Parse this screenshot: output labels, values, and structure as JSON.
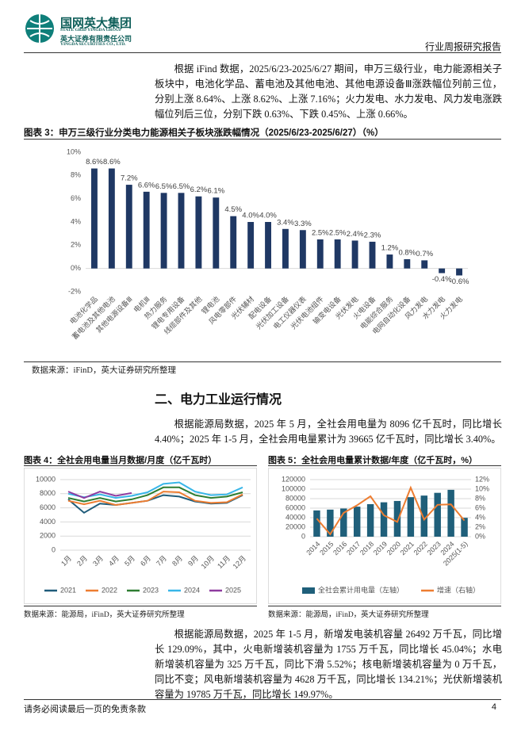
{
  "header": {
    "company": "国网英大集团",
    "company_en": "STATE GRID YINGDA GROUP",
    "sub": "英大证券有限责任公司",
    "sub_en": "YINGDA SECURITIES CO., LTD.",
    "report_type": "行业周报研究报告"
  },
  "paragraphs": [
    "根据 iFind 数据，2025/6/23-2025/6/27 期间，申万三级行业，电力能源相关子板块中，电池化学品、蓄电池及其他电池、其他电源设备Ⅲ涨跌幅位列前三位，分别上涨 8.64%、上涨 8.62%、上涨 7.16%；火力发电、水力发电、风力发电涨跌幅位列后三位，分别下跌 0.63%、下跌 0.45%、上涨 0.66%。",
    "根据能源局数据，2025 年 5 月，全社会用电量为 8096 亿千瓦时，同比增长 4.40%；2025 年 1-5 月，全社会用电量累计为 39665 亿千瓦时，同比增长 3.40%。",
    "根据能源局数据，2025 年 1-5 月，新增发电装机容量 26492 万千瓦，同比增长 129.09%，其中，火电新增装机容量为 1755 万千瓦，同比增长 45.04%；水电新增装机容量为 325 万千瓦，同比下滑 5.52%；核电新增装机容量为 0 万千瓦，同比不变；风电新增装机容量为 4628 万千瓦，同比增长 134.21%；光伏新增装机容量为 19785 万千瓦，同比增长 149.97%。"
  ],
  "section_heading": "二、电力工业运行情况",
  "footer": {
    "disclaimer": "请务必阅读最后一页的免责条款",
    "page": "4"
  },
  "chart_data": [
    {
      "type": "bar",
      "title": "图表 3：申万三级行业分类电力能源相关子板块涨跌幅情况（2025/6/23-2025/6/27）（%）",
      "source": "数据来源：iFinD，英大证券研究所整理",
      "categories": [
        "电池化学品",
        "蓄电池及其他电池",
        "其他电源设备Ⅲ",
        "电机Ⅲ",
        "热力服务",
        "锂电专用设备",
        "线缆部件及其他",
        "锂电池",
        "风电零部件",
        "光伏辅材",
        "配电设备",
        "光伏加工设备",
        "电工仪器仪表",
        "光伏电池组件",
        "输变电设备",
        "光伏发电",
        "火电设备",
        "电能综合服务",
        "电网自动化设备",
        "风力发电",
        "水力发电",
        "火力发电"
      ],
      "values": [
        8.6,
        8.6,
        7.2,
        6.6,
        6.5,
        6.5,
        6.2,
        6.1,
        4.5,
        4.0,
        4.0,
        3.4,
        3.3,
        2.5,
        2.5,
        2.4,
        2.3,
        1.2,
        0.8,
        0.7,
        -0.4,
        -0.6
      ],
      "value_labels": [
        "8.6%",
        "8.6%",
        "7.2%",
        "6.6%",
        "6.5%",
        "6.5%",
        "6.2%",
        "6.1%",
        "4.5%",
        "4.0%",
        "4.0%",
        "3.4%",
        "3.3%",
        "2.5%",
        "2.5%",
        "2.4%",
        "2.3%",
        "1.2%",
        "0.8%",
        "0.7%",
        "-0.4%",
        "-0.6%"
      ],
      "color": "#1f3864",
      "ylim": [
        -2,
        10
      ],
      "yticks": [
        {
          "value": -2,
          "label": "-2%"
        },
        {
          "value": 0,
          "label": "0%"
        },
        {
          "value": 2,
          "label": "2%"
        },
        {
          "value": 4,
          "label": "4%"
        },
        {
          "value": 6,
          "label": "6%"
        },
        {
          "value": 8,
          "label": "8%"
        },
        {
          "value": 10,
          "label": "10%"
        }
      ],
      "grid": false
    },
    {
      "type": "line",
      "title": "图表 4：全社会用电量当月数据/月度（亿千瓦时）",
      "source": "数据来源：能源局，iFinD，英大证券研究所整理",
      "categories": [
        "1月",
        "2月",
        "3月",
        "4月",
        "5月",
        "6月",
        "7月",
        "8月",
        "9月",
        "10月",
        "11月",
        "12月"
      ],
      "series": [
        {
          "name": "2021",
          "color": "#1f5c7a",
          "values": [
            7200,
            5300,
            6600,
            6400,
            6700,
            7000,
            7800,
            7600,
            6900,
            6600,
            6700,
            7800
          ]
        },
        {
          "name": "2022",
          "color": "#ed7d31",
          "values": [
            7000,
            6500,
            7000,
            6400,
            6700,
            7000,
            8300,
            8200,
            7000,
            6700,
            6800,
            7900
          ]
        },
        {
          "name": "2023",
          "color": "#2e7d32",
          "values": [
            7400,
            6900,
            7400,
            6900,
            7200,
            7800,
            8900,
            8900,
            7800,
            7400,
            7600,
            8200
          ]
        },
        {
          "name": "2024",
          "color": "#38b6e8",
          "values": [
            8000,
            7500,
            7900,
            7400,
            7700,
            8200,
            9400,
            9600,
            8300,
            7800,
            7900,
            8900
          ]
        },
        {
          "name": "2025",
          "color": "#8e3b9f",
          "values": [
            8300,
            7400,
            8300,
            7700,
            8100,
            null,
            null,
            null,
            null,
            null,
            null,
            null
          ]
        }
      ],
      "ylim": [
        0,
        10000
      ],
      "yticks": [
        0,
        2000,
        4000,
        6000,
        8000,
        10000
      ],
      "grid": true,
      "legend": "bottom"
    },
    {
      "type": "combo",
      "title": "图表 5：全社会用电量累计数据/年度（亿千瓦时，%）",
      "source": "数据来源：能源局，iFinD，英大证券研究所整理",
      "categories": [
        "2014",
        "2015",
        "2016",
        "2017",
        "2018",
        "2019",
        "2020",
        "2021",
        "2022",
        "2023",
        "2024",
        "2025(1-5)"
      ],
      "series": [
        {
          "name": "全社会累计用电量（左轴）",
          "color": "#1f5f7a",
          "values": [
            55200,
            56900,
            59200,
            63100,
            68400,
            72300,
            75100,
            83100,
            86400,
            92200,
            98500,
            39665
          ]
        },
        {
          "name": "增速（右轴）",
          "color": "#ed7d31",
          "axis": "y2",
          "values": [
            3.8,
            0.5,
            5.0,
            6.6,
            8.5,
            4.5,
            3.1,
            10.3,
            3.6,
            6.7,
            6.8,
            3.4
          ]
        }
      ],
      "ylim": [
        0,
        120000
      ],
      "yticks": [
        0,
        20000,
        40000,
        60000,
        80000,
        100000,
        120000
      ],
      "y2lim": [
        0,
        12
      ],
      "y2ticks": [
        {
          "value": 0,
          "label": "0%"
        },
        {
          "value": 2,
          "label": "2%"
        },
        {
          "value": 4,
          "label": "4%"
        },
        {
          "value": 6,
          "label": "6%"
        },
        {
          "value": 8,
          "label": "8%"
        },
        {
          "value": 10,
          "label": "10%"
        },
        {
          "value": 12,
          "label": "12%"
        }
      ],
      "grid": true,
      "legend": "bottom"
    }
  ]
}
